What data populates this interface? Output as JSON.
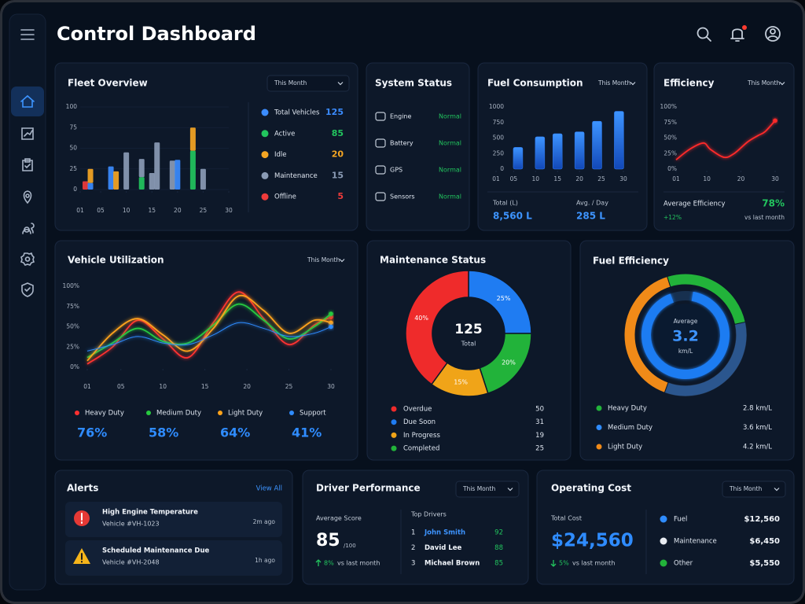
{
  "header": {
    "title": "Control Dashboard"
  },
  "fleet_overview": {
    "title": "Fleet Overview",
    "filter": "This Month",
    "chart_data": {
      "type": "stacked_bar",
      "x": [
        2,
        3,
        7,
        8,
        10,
        13,
        15,
        16,
        19,
        20,
        23,
        25
      ],
      "xlim": [
        1,
        30
      ],
      "ylim": [
        0,
        100
      ],
      "xticks": [
        {
          "value": 1,
          "label": "01"
        },
        {
          "value": 5,
          "label": "05"
        },
        10,
        15,
        20,
        25,
        30
      ],
      "yticks": [
        0,
        25,
        50,
        75,
        100
      ],
      "grid": true,
      "series": [
        {
          "name": "Total Vehicles",
          "color": "#3b8cff",
          "count": 125,
          "values": [
            0,
            8,
            28,
            0,
            0,
            0,
            0,
            0,
            0,
            36,
            0,
            0
          ]
        },
        {
          "name": "Active",
          "color": "#22c55e",
          "count": 85,
          "values": [
            0,
            0,
            0,
            0,
            0,
            15,
            0,
            0,
            0,
            0,
            47,
            0
          ]
        },
        {
          "name": "Idle",
          "color": "#f5a623",
          "count": 20,
          "values": [
            0,
            17,
            0,
            22,
            0,
            0,
            0,
            0,
            0,
            0,
            28,
            0
          ]
        },
        {
          "name": "Maintenance",
          "color": "#8a9bb5",
          "count": 15,
          "values": [
            0,
            0,
            0,
            0,
            45,
            22,
            20,
            57,
            35,
            0,
            0,
            25
          ]
        },
        {
          "name": "Offline",
          "color": "#ef3b3b",
          "count": 5,
          "values": [
            10,
            0,
            0,
            0,
            0,
            0,
            0,
            0,
            0,
            0,
            0,
            0
          ]
        }
      ]
    }
  },
  "system_status": {
    "title": "System Status",
    "rows": [
      {
        "label": "Engine",
        "status": "Normal"
      },
      {
        "label": "Battery",
        "status": "Normal"
      },
      {
        "label": "GPS",
        "status": "Normal"
      },
      {
        "label": "Sensors",
        "status": "Normal"
      }
    ]
  },
  "fuel_consumption": {
    "title": "Fuel Consumption",
    "filter": "This Month",
    "chart_data": {
      "type": "bar",
      "x": [
        6,
        11,
        15,
        20,
        24,
        29
      ],
      "values": [
        350,
        520,
        570,
        600,
        770,
        930
      ],
      "color": "#2f7df6",
      "xlim": [
        1,
        30
      ],
      "ylim": [
        0,
        1000
      ],
      "xticks": [
        {
          "value": 1,
          "label": "01"
        },
        {
          "value": 5,
          "label": "05"
        },
        10,
        15,
        20,
        25,
        30
      ],
      "yticks": [
        0,
        250,
        500,
        750,
        1000
      ]
    },
    "stats": [
      {
        "label": "Total (L)",
        "value": "8,560 L"
      },
      {
        "label": "Avg. / Day",
        "value": "285 L"
      }
    ]
  },
  "efficiency": {
    "title": "Efficiency",
    "filter": "This Month",
    "chart_data": {
      "type": "line",
      "x": [
        1,
        5,
        9,
        11,
        15,
        18,
        22,
        25,
        27,
        30
      ],
      "values": [
        15,
        32,
        42,
        32,
        19,
        25,
        44,
        54,
        60,
        78
      ],
      "color": "#ff2a2a",
      "xlim": [
        1,
        30
      ],
      "ylim": [
        0,
        100
      ],
      "xticks": [
        {
          "value": 1,
          "label": "01"
        },
        10,
        20,
        30
      ],
      "yticks": [
        {
          "value": 0,
          "label": "0%"
        },
        {
          "value": 25,
          "label": "25%"
        },
        {
          "value": 50,
          "label": "50%"
        },
        {
          "value": 75,
          "label": "75%"
        },
        {
          "value": 100,
          "label": "100%"
        }
      ]
    },
    "stat_label": "Average Efficiency",
    "stat_value": "78%",
    "change": "+12%",
    "change_note": "vs last month"
  },
  "vehicle_utilization": {
    "title": "Vehicle Utilization",
    "filter": "This Month",
    "chart_data": {
      "type": "line",
      "x": [
        1,
        4,
        7,
        10,
        13,
        16,
        19,
        22,
        25,
        28,
        30
      ],
      "xlim": [
        1,
        30
      ],
      "ylim": [
        0,
        100
      ],
      "xticks": [
        {
          "value": 1,
          "label": "01"
        },
        {
          "value": 5,
          "label": "05"
        },
        10,
        15,
        20,
        25,
        30
      ],
      "yticks": [
        {
          "value": 0,
          "label": "0%"
        },
        {
          "value": 25,
          "label": "25%"
        },
        {
          "value": 50,
          "label": "50%"
        },
        {
          "value": 75,
          "label": "75%"
        },
        {
          "value": 100,
          "label": "100%"
        }
      ],
      "series": [
        {
          "name": "Heavy Duty",
          "color": "#ff3030",
          "average": "76%",
          "values": [
            4,
            25,
            58,
            35,
            12,
            55,
            93,
            60,
            28,
            52,
            62
          ]
        },
        {
          "name": "Medium Duty",
          "color": "#27c93f",
          "average": "58%",
          "values": [
            12,
            30,
            48,
            32,
            30,
            52,
            78,
            58,
            35,
            50,
            66
          ]
        },
        {
          "name": "Light Duty",
          "color": "#ffa31a",
          "average": "64%",
          "values": [
            8,
            42,
            60,
            40,
            20,
            48,
            88,
            70,
            42,
            58,
            55
          ]
        },
        {
          "name": "Support",
          "color": "#2f8cff",
          "average": "41%",
          "values": [
            20,
            28,
            38,
            30,
            28,
            40,
            55,
            48,
            38,
            42,
            50
          ]
        }
      ]
    }
  },
  "maintenance_status": {
    "title": "Maintenance Status",
    "chart_data": {
      "type": "donut",
      "center_value": 125,
      "center_label": "Total",
      "categories": [
        "Overdue",
        "Due Soon",
        "In Progress",
        "Completed"
      ],
      "values": [
        40,
        25,
        15,
        20
      ],
      "value_labels": [
        "40%",
        "25%",
        "15%",
        "20%"
      ],
      "colors": [
        "#ef2b2b",
        "#1f7cf2",
        "#f0a418",
        "#22b33a"
      ],
      "counts": [
        50,
        31,
        19,
        25
      ]
    }
  },
  "fuel_efficiency": {
    "title": "Fuel Efficiency",
    "chart_data": {
      "type": "radial",
      "center_label": "Average",
      "center_value": 3.2,
      "center_unit": "km/L",
      "categories": [
        "Heavy Duty",
        "Medium Duty",
        "Light Duty"
      ],
      "values": [
        2.8,
        3.6,
        4.2
      ],
      "value_labels": [
        "2.8 km/L",
        "3.6 km/L",
        "4.2 km/L"
      ],
      "colors": [
        "#22b33a",
        "#2f8cff",
        "#f08a18"
      ]
    }
  },
  "alerts": {
    "title": "Alerts",
    "action": "View All",
    "items": [
      {
        "title": "High Engine Temperature",
        "subtitle": "Vehicle #VH-1023",
        "time": "2m ago"
      },
      {
        "title": "Scheduled Maintenance Due",
        "subtitle": "Vehicle #VH-2048",
        "time": "1h ago"
      }
    ]
  },
  "driver_performance": {
    "title": "Driver Performance",
    "filter": "This Month",
    "score_label": "Average Score",
    "score": "85",
    "score_max": "/100",
    "change": "8%",
    "change_note": "vs last month",
    "drivers_title": "Top Drivers",
    "drivers": [
      {
        "rank": "1",
        "name": "John Smith",
        "score": "92"
      },
      {
        "rank": "2",
        "name": "David Lee",
        "score": "88"
      },
      {
        "rank": "3",
        "name": "Michael Brown",
        "score": "85"
      }
    ]
  },
  "operating_cost": {
    "title": "Operating Cost",
    "filter": "This Month",
    "total_label": "Total Cost",
    "total": "$24,560",
    "change": "5%",
    "change_note": "vs last month",
    "items": [
      {
        "name": "Fuel",
        "color": "#2f8cff",
        "value": "$12,560"
      },
      {
        "name": "Maintenance",
        "color": "#e8ecf2",
        "value": "$6,450"
      },
      {
        "name": "Other",
        "color": "#22b33a",
        "value": "$5,550"
      }
    ]
  }
}
